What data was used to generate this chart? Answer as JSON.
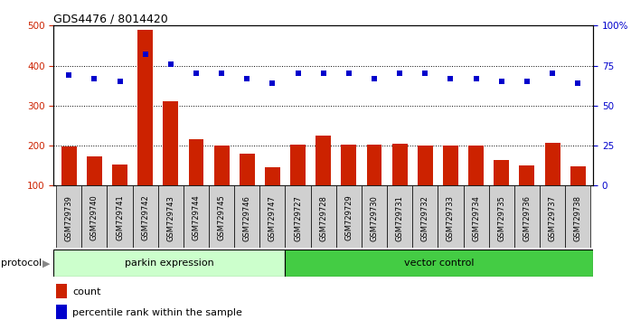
{
  "title": "GDS4476 / 8014420",
  "samples": [
    "GSM729739",
    "GSM729740",
    "GSM729741",
    "GSM729742",
    "GSM729743",
    "GSM729744",
    "GSM729745",
    "GSM729746",
    "GSM729747",
    "GSM729727",
    "GSM729728",
    "GSM729729",
    "GSM729730",
    "GSM729731",
    "GSM729732",
    "GSM729733",
    "GSM729734",
    "GSM729735",
    "GSM729736",
    "GSM729737",
    "GSM729738"
  ],
  "counts": [
    197,
    173,
    152,
    490,
    310,
    215,
    200,
    180,
    147,
    202,
    225,
    202,
    202,
    204,
    201,
    201,
    200,
    165,
    150,
    207,
    148
  ],
  "percentile_ranks": [
    69,
    67,
    65,
    82,
    76,
    70,
    70,
    67,
    64,
    70,
    70,
    70,
    67,
    70,
    70,
    67,
    67,
    65,
    65,
    70,
    64
  ],
  "parkin_count": 9,
  "vector_count": 12,
  "parkin_label": "parkin expression",
  "vector_label": "vector control",
  "protocol_label": "protocol",
  "legend_count": "count",
  "legend_percentile": "percentile rank within the sample",
  "bar_color": "#cc2200",
  "dot_color": "#0000cc",
  "parkin_bg": "#ccffcc",
  "vector_bg": "#44cc44",
  "ylim_left": [
    100,
    500
  ],
  "ylim_right": [
    0,
    100
  ],
  "yticks_left": [
    100,
    200,
    300,
    400,
    500
  ],
  "yticks_right": [
    0,
    25,
    50,
    75,
    100
  ],
  "xtick_bg": "#d0d0d0",
  "plot_bg": "#ffffff",
  "fig_bg": "#ffffff"
}
